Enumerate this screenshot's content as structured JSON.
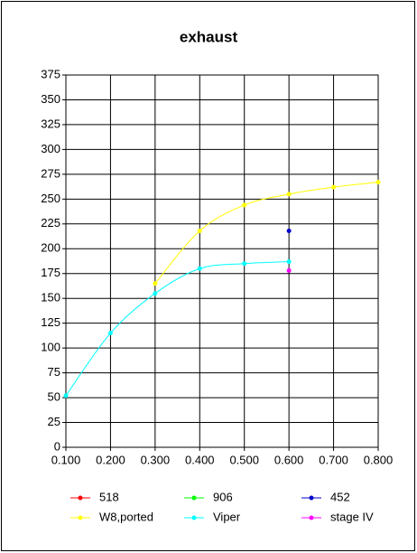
{
  "chart_data": {
    "type": "line",
    "title": "exhaust",
    "xlim": [
      0.1,
      0.8
    ],
    "xticks": [
      {
        "value": 0.1,
        "label": "0.100"
      },
      {
        "value": 0.2,
        "label": "0.200"
      },
      {
        "value": 0.3,
        "label": "0.300"
      },
      {
        "value": 0.4,
        "label": "0.400"
      },
      {
        "value": 0.5,
        "label": "0.500"
      },
      {
        "value": 0.6,
        "label": "0.600"
      },
      {
        "value": 0.7,
        "label": "0.700"
      },
      {
        "value": 0.8,
        "label": "0.800"
      }
    ],
    "ylim": [
      0,
      375
    ],
    "yticks": [
      0,
      25,
      50,
      75,
      100,
      125,
      150,
      175,
      200,
      225,
      250,
      275,
      300,
      325,
      350,
      375
    ],
    "grid": true,
    "legend": "bottom",
    "series": [
      {
        "name": "518",
        "color": "#ff0000",
        "x": [],
        "values": []
      },
      {
        "name": "906",
        "color": "#00ff00",
        "x": [],
        "values": []
      },
      {
        "name": "452",
        "color": "#0000cc",
        "x": [
          0.6
        ],
        "values": [
          218
        ]
      },
      {
        "name": "W8,ported",
        "color": "#ffff00",
        "x": [
          0.3,
          0.4,
          0.5,
          0.6,
          0.7,
          0.8
        ],
        "values": [
          165,
          218,
          244,
          255,
          262,
          267
        ]
      },
      {
        "name": "Viper",
        "color": "#00ffff",
        "x": [
          0.1,
          0.2,
          0.3,
          0.4,
          0.5,
          0.6
        ],
        "values": [
          52,
          115,
          155,
          180,
          185,
          187
        ]
      },
      {
        "name": "stage IV",
        "color": "#ff00ff",
        "x": [
          0.6
        ],
        "values": [
          178
        ]
      }
    ]
  }
}
